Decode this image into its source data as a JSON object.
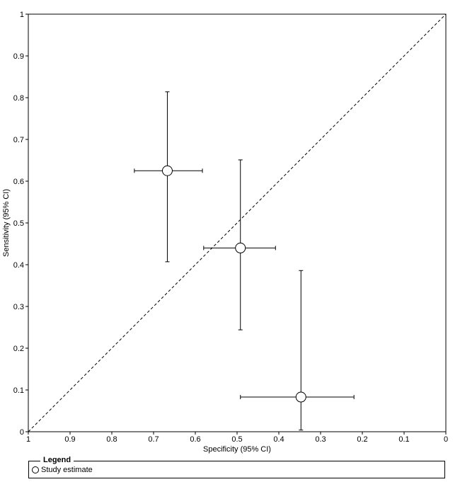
{
  "chart_data": {
    "type": "scatter",
    "xlabel": "Specificity (95% CI)",
    "ylabel": "Sensitivity (95% CI)",
    "x_reversed": true,
    "xlim": [
      1,
      0
    ],
    "ylim": [
      0,
      1
    ],
    "x_ticks": [
      "1",
      "0.9",
      "0.8",
      "0.7",
      "0.6",
      "0.5",
      "0.4",
      "0.3",
      "0.2",
      "0.1",
      "0"
    ],
    "y_ticks": [
      "0",
      "0.1",
      "0.2",
      "0.3",
      "0.4",
      "0.5",
      "0.6",
      "0.7",
      "0.8",
      "0.9",
      "1"
    ],
    "x_tick_values": [
      1,
      0.9,
      0.8,
      0.7,
      0.6,
      0.5,
      0.4,
      0.3,
      0.2,
      0.1,
      0
    ],
    "y_tick_values": [
      0,
      0.1,
      0.2,
      0.3,
      0.4,
      0.5,
      0.6,
      0.7,
      0.8,
      0.9,
      1
    ],
    "reference_line": "diagonal dashed from (1,0) to (0,1)",
    "grid": false,
    "series": [
      {
        "name": "Study estimate",
        "points": [
          {
            "specificity": 0.667,
            "sensitivity": 0.625,
            "spec_ci": [
              0.583,
              0.746
            ],
            "sens_ci": [
              0.407,
              0.814
            ]
          },
          {
            "specificity": 0.492,
            "sensitivity": 0.44,
            "spec_ci": [
              0.408,
              0.58
            ],
            "sens_ci": [
              0.244,
              0.651
            ]
          },
          {
            "specificity": 0.347,
            "sensitivity": 0.083,
            "spec_ci": [
              0.22,
              0.492
            ],
            "sens_ci": [
              0.004,
              0.386
            ]
          }
        ]
      }
    ]
  },
  "legend": {
    "title": "Legend",
    "items": [
      {
        "label": "Study estimate",
        "marker": "open-circle"
      }
    ]
  }
}
